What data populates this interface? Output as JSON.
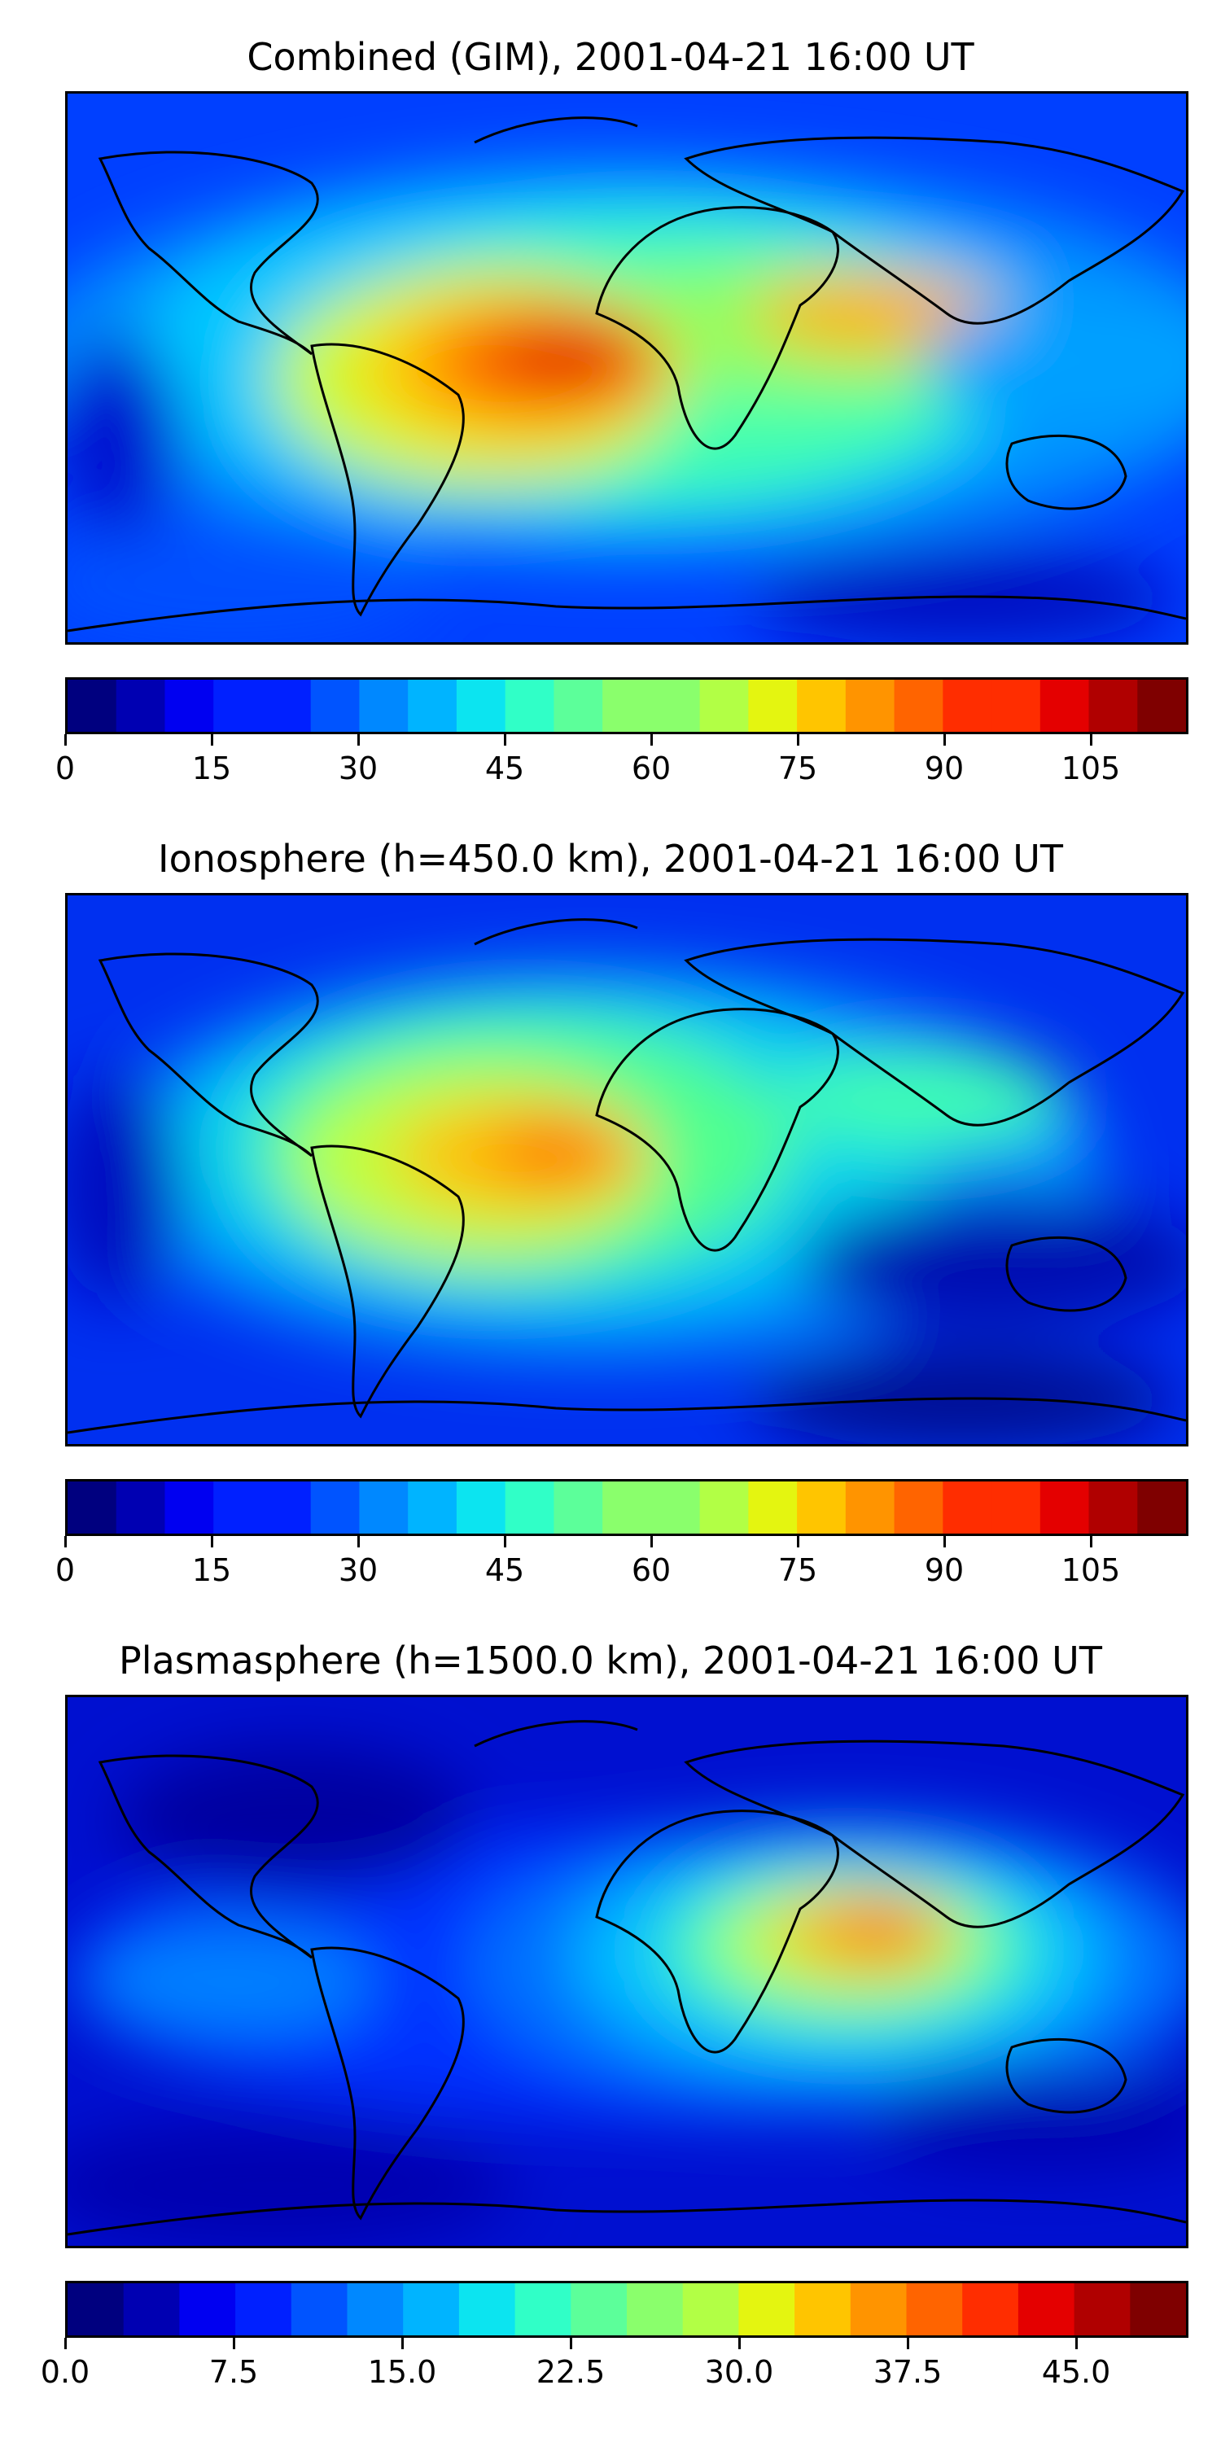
{
  "panels": [
    {
      "title": "Combined (GIM), 2001-04-21 16:00 UT",
      "colorbar_ticks": [
        "0",
        "15",
        "30",
        "45",
        "60",
        "75",
        "90",
        "105"
      ],
      "colorbar_max": 115
    },
    {
      "title": "Ionosphere  (h=450.0 km), 2001-04-21 16:00 UT",
      "colorbar_ticks": [
        "0",
        "15",
        "30",
        "45",
        "60",
        "75",
        "90",
        "105"
      ],
      "colorbar_max": 115
    },
    {
      "title": "Plasmasphere (h=1500.0 km), 2001-04-21 16:00 UT",
      "colorbar_ticks": [
        "0.0",
        "7.5",
        "15.0",
        "22.5",
        "30.0",
        "37.5",
        "45.0"
      ],
      "colorbar_max": 50
    }
  ],
  "colormap": [
    "#00007f",
    "#0000b2",
    "#0000f1",
    "#0020ff",
    "#0054ff",
    "#0088ff",
    "#00b4ff",
    "#0ce4f0",
    "#30ffc7",
    "#5cff9a",
    "#8aff6c",
    "#b2ff45",
    "#e4f510",
    "#ffc500",
    "#ff9400",
    "#ff6400",
    "#ff2d00",
    "#e40000",
    "#b00000",
    "#7f0000",
    "#660000",
    "#550000",
    "#440000"
  ]
}
